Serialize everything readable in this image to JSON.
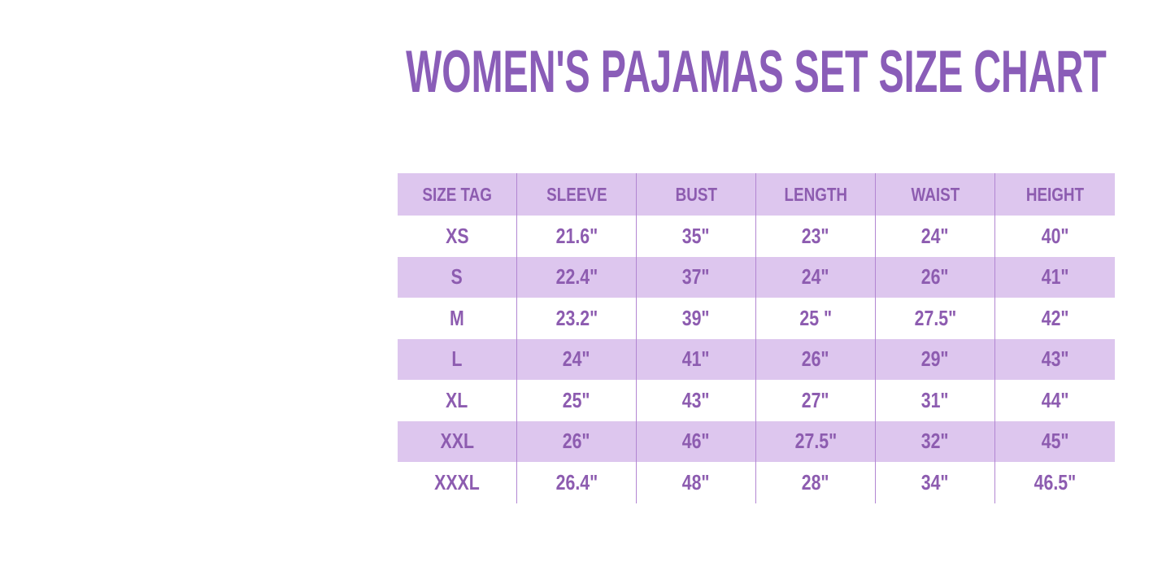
{
  "chart_data": {
    "type": "table",
    "title": "WOMEN'S PAJAMAS SET SIZE CHART",
    "columns": [
      "SIZE TAG",
      "SLEEVE",
      "BUST",
      "LENGTH",
      "WAIST",
      "HEIGHT"
    ],
    "rows": [
      [
        "XS",
        "21.6\"",
        "35\"",
        "23\"",
        "24\"",
        "40\""
      ],
      [
        "S",
        "22.4\"",
        "37\"",
        "24\"",
        "26\"",
        "41\""
      ],
      [
        "M",
        "23.2\"",
        "39\"",
        "25 \"",
        "27.5\"",
        "42\""
      ],
      [
        "L",
        "24\"",
        "41\"",
        "26\"",
        "29\"",
        "43\""
      ],
      [
        "XL",
        "25\"",
        "43\"",
        "27\"",
        "31\"",
        "44\""
      ],
      [
        "XXL",
        "26\"",
        "46\"",
        "27.5\"",
        "32\"",
        "45\""
      ],
      [
        "XXXL",
        "26.4\"",
        "48\"",
        "28\"",
        "34\"",
        "46.5\""
      ]
    ],
    "legend_position": "none",
    "grid": "vertical-dividers-only",
    "striped_row_labels": [
      "S",
      "L",
      "XXL"
    ]
  },
  "colors": {
    "title_text": "#8a5db8",
    "table_text": "#8d5cb0",
    "row_stripe": "#ddc6ee",
    "column_divider": "#b286d2",
    "background": "#ffffff"
  }
}
